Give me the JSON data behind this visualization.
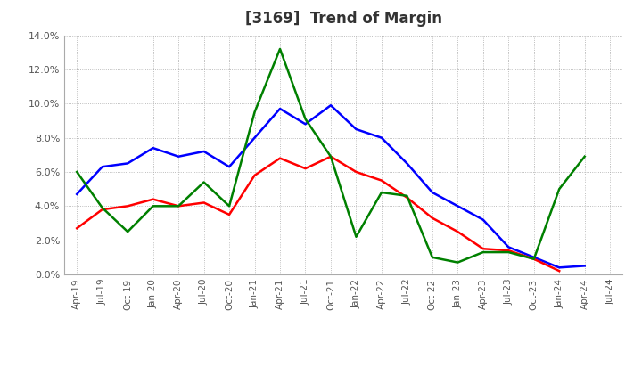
{
  "title": "[3169]  Trend of Margin",
  "x_labels": [
    "Apr-19",
    "Jul-19",
    "Oct-19",
    "Jan-20",
    "Apr-20",
    "Jul-20",
    "Oct-20",
    "Jan-21",
    "Apr-21",
    "Jul-21",
    "Oct-21",
    "Jan-22",
    "Apr-22",
    "Jul-22",
    "Oct-22",
    "Jan-23",
    "Apr-23",
    "Jul-23",
    "Oct-23",
    "Jan-24",
    "Apr-24",
    "Jul-24"
  ],
  "ordinary_income": [
    4.7,
    6.3,
    6.5,
    7.4,
    6.9,
    7.2,
    6.3,
    8.0,
    9.7,
    8.8,
    9.9,
    8.5,
    8.0,
    6.5,
    4.8,
    4.0,
    3.2,
    1.6,
    1.0,
    0.4,
    0.5,
    null
  ],
  "net_income": [
    2.7,
    3.8,
    4.0,
    4.4,
    4.0,
    4.2,
    3.5,
    5.8,
    6.8,
    6.2,
    6.9,
    6.0,
    5.5,
    4.5,
    3.3,
    2.5,
    1.5,
    1.4,
    0.9,
    0.2,
    null,
    null
  ],
  "operating_cashflow": [
    6.0,
    3.9,
    2.5,
    4.0,
    4.0,
    5.4,
    4.0,
    9.5,
    13.2,
    9.1,
    6.9,
    2.2,
    4.8,
    4.6,
    1.0,
    0.7,
    1.3,
    1.3,
    0.9,
    5.0,
    6.9,
    null
  ],
  "ordinary_income_color": "#0000ff",
  "net_income_color": "#ff0000",
  "operating_cashflow_color": "#008000",
  "ylim": [
    0.0,
    0.14
  ],
  "yticks": [
    0.0,
    0.02,
    0.04,
    0.06,
    0.08,
    0.1,
    0.12,
    0.14
  ],
  "background_color": "#ffffff",
  "grid_color": "#aaaaaa",
  "title_fontsize": 12,
  "title_color": "#333333",
  "legend_text_color": "#555555",
  "tick_label_color": "#555555"
}
